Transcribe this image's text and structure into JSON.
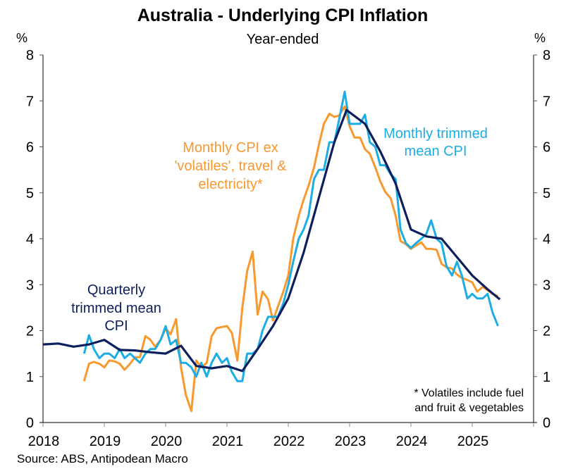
{
  "chart_data": {
    "type": "line",
    "title": "Australia - Underlying CPI Inflation",
    "subtitle": "Year-ended",
    "ylabel_left": "%",
    "ylabel_right": "%",
    "xlabel": "",
    "xlim": [
      2018,
      2026
    ],
    "ylim": [
      0,
      8
    ],
    "x_ticks": [
      2018,
      2019,
      2020,
      2021,
      2022,
      2023,
      2024,
      2025
    ],
    "x_tick_labels": [
      "2018",
      "2019",
      "2020",
      "2021",
      "2022",
      "2023",
      "2024",
      "2025"
    ],
    "y_ticks": [
      0,
      1,
      2,
      3,
      4,
      5,
      6,
      7,
      8
    ],
    "y_tick_labels": [
      "0",
      "1",
      "2",
      "3",
      "4",
      "5",
      "6",
      "7",
      "8"
    ],
    "grid": false,
    "source": "Source: ABS, Antipodean Macro",
    "footnote": [
      "* Volatiles include fuel",
      "and fruit & vegetables"
    ],
    "series": [
      {
        "name": "Monthly CPI ex 'volatiles', travel & electricity*",
        "label_lines": [
          "Monthly CPI ex",
          "'volatiles', travel &",
          "electricity*"
        ],
        "color": "#F7992F",
        "frequency": "monthly",
        "x": [
          2018.67,
          2018.75,
          2018.83,
          2018.92,
          2019.0,
          2019.08,
          2019.17,
          2019.25,
          2019.33,
          2019.42,
          2019.5,
          2019.58,
          2019.67,
          2019.75,
          2019.83,
          2019.92,
          2020.0,
          2020.08,
          2020.17,
          2020.25,
          2020.33,
          2020.42,
          2020.5,
          2020.58,
          2020.67,
          2020.75,
          2020.83,
          2020.92,
          2021.0,
          2021.08,
          2021.17,
          2021.25,
          2021.33,
          2021.42,
          2021.5,
          2021.58,
          2021.67,
          2021.75,
          2021.83,
          2021.92,
          2022.0,
          2022.08,
          2022.17,
          2022.25,
          2022.33,
          2022.42,
          2022.5,
          2022.58,
          2022.67,
          2022.75,
          2022.83,
          2022.92,
          2023.0,
          2023.08,
          2023.17,
          2023.25,
          2023.33,
          2023.42,
          2023.5,
          2023.58,
          2023.67,
          2023.75,
          2023.83,
          2023.92,
          2024.0,
          2024.08,
          2024.17,
          2024.25,
          2024.33,
          2024.42,
          2024.5,
          2024.58,
          2024.67,
          2024.75,
          2024.83,
          2024.92,
          2025.0,
          2025.08,
          2025.17,
          2025.25,
          2025.33,
          2025.42
        ],
        "values": [
          0.9,
          1.28,
          1.32,
          1.28,
          1.2,
          1.35,
          1.33,
          1.28,
          1.15,
          1.28,
          1.42,
          1.42,
          1.88,
          1.8,
          1.65,
          1.8,
          2.05,
          1.92,
          2.25,
          1.2,
          0.6,
          0.25,
          1.35,
          1.2,
          1.3,
          1.88,
          2.05,
          2.08,
          2.1,
          1.95,
          1.35,
          2.5,
          3.3,
          3.72,
          2.35,
          2.85,
          2.68,
          2.22,
          2.52,
          2.85,
          3.2,
          4.0,
          4.5,
          4.85,
          5.15,
          5.55,
          6.05,
          6.5,
          6.72,
          6.65,
          6.68,
          6.88,
          6.45,
          6.2,
          6.2,
          5.95,
          5.85,
          5.55,
          5.25,
          5.02,
          4.88,
          4.5,
          3.95,
          3.88,
          3.78,
          3.85,
          3.92,
          3.78,
          3.78,
          3.76,
          3.45,
          3.38,
          3.35,
          3.22,
          3.15,
          3.1,
          3.05,
          2.85,
          2.95,
          2.88,
          2.8,
          2.75
        ]
      },
      {
        "name": "Monthly trimmed mean CPI",
        "label_lines": [
          "Monthly trimmed",
          "mean CPI"
        ],
        "color": "#1CADE4",
        "frequency": "monthly",
        "x": [
          2018.67,
          2018.75,
          2018.83,
          2018.92,
          2019.0,
          2019.08,
          2019.17,
          2019.25,
          2019.33,
          2019.42,
          2019.5,
          2019.58,
          2019.67,
          2019.75,
          2019.83,
          2019.92,
          2020.0,
          2020.08,
          2020.17,
          2020.25,
          2020.33,
          2020.42,
          2020.5,
          2020.58,
          2020.67,
          2020.75,
          2020.83,
          2020.92,
          2021.0,
          2021.08,
          2021.17,
          2021.25,
          2021.33,
          2021.42,
          2021.5,
          2021.58,
          2021.67,
          2021.75,
          2021.83,
          2021.92,
          2022.0,
          2022.08,
          2022.17,
          2022.25,
          2022.33,
          2022.42,
          2022.5,
          2022.58,
          2022.67,
          2022.75,
          2022.83,
          2022.92,
          2023.0,
          2023.08,
          2023.17,
          2023.25,
          2023.33,
          2023.42,
          2023.5,
          2023.58,
          2023.67,
          2023.75,
          2023.83,
          2023.92,
          2024.0,
          2024.08,
          2024.17,
          2024.25,
          2024.33,
          2024.42,
          2024.5,
          2024.58,
          2024.67,
          2024.75,
          2024.83,
          2024.92,
          2025.0,
          2025.08,
          2025.17,
          2025.25,
          2025.33,
          2025.42
        ],
        "values": [
          1.5,
          1.9,
          1.6,
          1.4,
          1.5,
          1.5,
          1.4,
          1.6,
          1.4,
          1.5,
          1.4,
          1.3,
          1.5,
          1.6,
          1.6,
          1.8,
          2.1,
          1.7,
          1.8,
          1.3,
          1.3,
          1.2,
          1.0,
          1.3,
          1.0,
          1.3,
          1.5,
          1.3,
          1.4,
          1.1,
          0.9,
          0.9,
          1.5,
          1.5,
          1.6,
          2.0,
          2.3,
          2.3,
          2.3,
          2.6,
          3.0,
          3.5,
          4.0,
          4.2,
          4.5,
          5.3,
          5.5,
          5.5,
          6.1,
          6.1,
          6.6,
          7.2,
          6.5,
          6.5,
          6.5,
          6.7,
          6.1,
          6.0,
          5.6,
          5.6,
          5.4,
          5.3,
          4.2,
          3.9,
          3.8,
          3.9,
          4.0,
          4.1,
          4.4,
          4.0,
          3.9,
          3.4,
          3.2,
          3.5,
          3.2,
          2.7,
          2.8,
          2.7,
          2.7,
          2.8,
          2.4,
          2.1
        ]
      },
      {
        "name": "Quarterly trimmed mean CPI",
        "label_lines": [
          "Quarterly",
          "trimmed mean",
          "CPI"
        ],
        "color": "#0D1F5C",
        "frequency": "quarterly",
        "x": [
          2018.0,
          2018.25,
          2018.5,
          2018.75,
          2019.0,
          2019.25,
          2019.5,
          2019.75,
          2020.0,
          2020.25,
          2020.5,
          2020.75,
          2021.0,
          2021.25,
          2021.5,
          2021.75,
          2022.0,
          2022.25,
          2022.5,
          2022.75,
          2022.95,
          2023.25,
          2023.5,
          2023.75,
          2024.0,
          2024.25,
          2024.5,
          2024.75,
          2025.0,
          2025.25,
          2025.45
        ],
        "values": [
          1.7,
          1.72,
          1.65,
          1.7,
          1.8,
          1.58,
          1.57,
          1.53,
          1.5,
          1.67,
          1.23,
          1.18,
          1.23,
          1.12,
          1.6,
          2.1,
          2.7,
          3.7,
          4.9,
          6.1,
          6.8,
          6.5,
          5.9,
          5.2,
          4.2,
          4.05,
          4.0,
          3.6,
          3.2,
          2.9,
          2.68
        ]
      }
    ]
  }
}
